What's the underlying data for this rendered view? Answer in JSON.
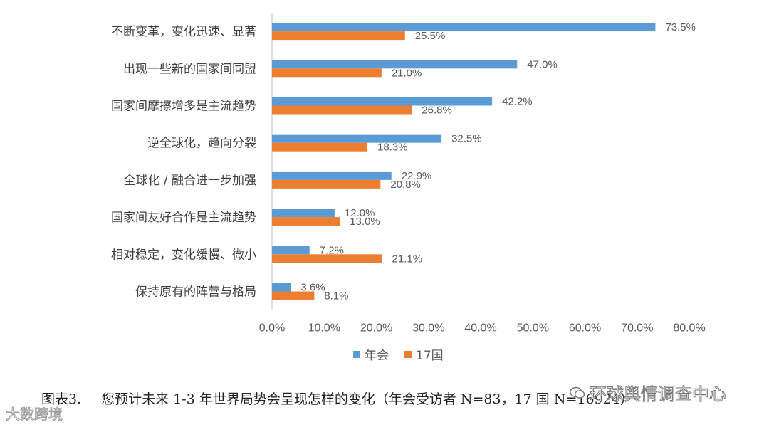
{
  "chart_data": {
    "type": "bar",
    "orientation": "horizontal",
    "categories": [
      "不断变革，变化迅速、显著",
      "出现一些新的国家间同盟",
      "国家间摩擦增多是主流趋势",
      "逆全球化，趋向分裂",
      "全球化 / 融合进一步加强",
      "国家间友好合作是主流趋势",
      "相对稳定，变化缓慢、微小",
      "保持原有的阵营与格局"
    ],
    "series": [
      {
        "name": "年会",
        "color": "#5B9BD5",
        "values": [
          73.5,
          47.0,
          42.2,
          32.5,
          22.9,
          12.0,
          7.2,
          3.6
        ],
        "labels": [
          "73.5%",
          "47.0%",
          "42.2%",
          "32.5%",
          "22.9%",
          "12.0%",
          "7.2%",
          "3.6%"
        ]
      },
      {
        "name": "17国",
        "color": "#ED7D31",
        "values": [
          25.5,
          21.0,
          26.8,
          18.3,
          20.8,
          13.0,
          21.1,
          8.1
        ],
        "labels": [
          "25.5%",
          "21.0%",
          "26.8%",
          "18.3%",
          "20.8%",
          "13.0%",
          "21.1%",
          "8.1%"
        ]
      }
    ],
    "x_ticks": [
      "0.0%",
      "10.0%",
      "20.0%",
      "30.0%",
      "40.0%",
      "50.0%",
      "60.0%",
      "70.0%",
      "80.0%"
    ],
    "xlim": [
      0,
      80
    ],
    "grid": false,
    "legend_position": "bottom"
  },
  "caption": {
    "number": "图表3.",
    "text": "您预计未来 1-3 年世界局势会呈现怎样的变化（年会受访者 N=83，17 国 N=16924）"
  },
  "watermarks": {
    "left": "大数跨境",
    "right": "环球舆情调查中心"
  }
}
